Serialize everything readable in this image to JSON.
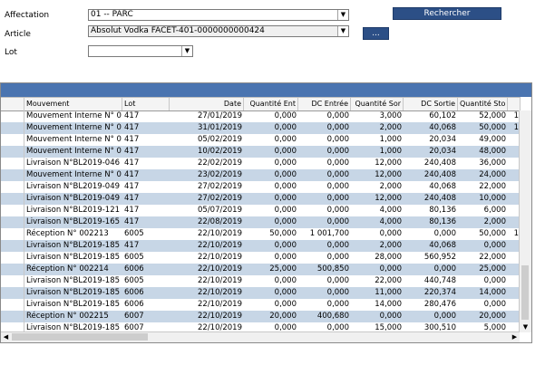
{
  "filters": {
    "affectation_label": "Affectation",
    "affectation_value": "01 -- PARC",
    "article_label": "Article",
    "article_value": "Absolut Vodka FACET-401-0000000000424",
    "lot_label": "Lot",
    "lot_value": ""
  },
  "buttons": {
    "search_label": "Rechercher",
    "browse_label": "..."
  },
  "table": {
    "columns": [
      "Mouvement",
      "Lot",
      "Date",
      "Quantité Ent",
      "DC Entrée",
      "Quantité Sor",
      "DC Sortie",
      "Quantité Sto"
    ],
    "rows": [
      {
        "mouvement": "Mouvement Interne N° 0",
        "lot": "417",
        "date": "27/01/2019",
        "qte_ent": "0,000",
        "dc_ent": "0,000",
        "qte_sor": "3,000",
        "dc_sor": "60,102",
        "qte_sto": "52,000",
        "extra": "1"
      },
      {
        "mouvement": "Mouvement Interne N° 0",
        "lot": "417",
        "date": "31/01/2019",
        "qte_ent": "0,000",
        "dc_ent": "0,000",
        "qte_sor": "2,000",
        "dc_sor": "40,068",
        "qte_sto": "50,000",
        "extra": "1"
      },
      {
        "mouvement": "Mouvement Interne N° 0",
        "lot": "417",
        "date": "05/02/2019",
        "qte_ent": "0,000",
        "dc_ent": "0,000",
        "qte_sor": "1,000",
        "dc_sor": "20,034",
        "qte_sto": "49,000",
        "extra": ""
      },
      {
        "mouvement": "Mouvement Interne N° 0",
        "lot": "417",
        "date": "10/02/2019",
        "qte_ent": "0,000",
        "dc_ent": "0,000",
        "qte_sor": "1,000",
        "dc_sor": "20,034",
        "qte_sto": "48,000",
        "extra": ""
      },
      {
        "mouvement": "Livraison N°BL2019-046",
        "lot": "417",
        "date": "22/02/2019",
        "qte_ent": "0,000",
        "dc_ent": "0,000",
        "qte_sor": "12,000",
        "dc_sor": "240,408",
        "qte_sto": "36,000",
        "extra": ""
      },
      {
        "mouvement": "Mouvement Interne N° 0",
        "lot": "417",
        "date": "23/02/2019",
        "qte_ent": "0,000",
        "dc_ent": "0,000",
        "qte_sor": "12,000",
        "dc_sor": "240,408",
        "qte_sto": "24,000",
        "extra": ""
      },
      {
        "mouvement": "Livraison N°BL2019-049",
        "lot": "417",
        "date": "27/02/2019",
        "qte_ent": "0,000",
        "dc_ent": "0,000",
        "qte_sor": "2,000",
        "dc_sor": "40,068",
        "qte_sto": "22,000",
        "extra": ""
      },
      {
        "mouvement": "Livraison N°BL2019-049",
        "lot": "417",
        "date": "27/02/2019",
        "qte_ent": "0,000",
        "dc_ent": "0,000",
        "qte_sor": "12,000",
        "dc_sor": "240,408",
        "qte_sto": "10,000",
        "extra": ""
      },
      {
        "mouvement": "Livraison N°BL2019-121",
        "lot": "417",
        "date": "05/07/2019",
        "qte_ent": "0,000",
        "dc_ent": "0,000",
        "qte_sor": "4,000",
        "dc_sor": "80,136",
        "qte_sto": "6,000",
        "extra": ""
      },
      {
        "mouvement": "Livraison N°BL2019-165",
        "lot": "417",
        "date": "22/08/2019",
        "qte_ent": "0,000",
        "dc_ent": "0,000",
        "qte_sor": "4,000",
        "dc_sor": "80,136",
        "qte_sto": "2,000",
        "extra": ""
      },
      {
        "mouvement": "Réception N° 002213",
        "lot": "6005",
        "date": "22/10/2019",
        "qte_ent": "50,000",
        "dc_ent": "1 001,700",
        "qte_sor": "0,000",
        "dc_sor": "0,000",
        "qte_sto": "50,000",
        "extra": "1"
      },
      {
        "mouvement": "Livraison N°BL2019-185",
        "lot": "417",
        "date": "22/10/2019",
        "qte_ent": "0,000",
        "dc_ent": "0,000",
        "qte_sor": "2,000",
        "dc_sor": "40,068",
        "qte_sto": "0,000",
        "extra": ""
      },
      {
        "mouvement": "Livraison N°BL2019-185",
        "lot": "6005",
        "date": "22/10/2019",
        "qte_ent": "0,000",
        "dc_ent": "0,000",
        "qte_sor": "28,000",
        "dc_sor": "560,952",
        "qte_sto": "22,000",
        "extra": ""
      },
      {
        "mouvement": "Réception N° 002214",
        "lot": "6006",
        "date": "22/10/2019",
        "qte_ent": "25,000",
        "dc_ent": "500,850",
        "qte_sor": "0,000",
        "dc_sor": "0,000",
        "qte_sto": "25,000",
        "extra": ""
      },
      {
        "mouvement": "Livraison N°BL2019-185",
        "lot": "6005",
        "date": "22/10/2019",
        "qte_ent": "0,000",
        "dc_ent": "0,000",
        "qte_sor": "22,000",
        "dc_sor": "440,748",
        "qte_sto": "0,000",
        "extra": ""
      },
      {
        "mouvement": "Livraison N°BL2019-185",
        "lot": "6006",
        "date": "22/10/2019",
        "qte_ent": "0,000",
        "dc_ent": "0,000",
        "qte_sor": "11,000",
        "dc_sor": "220,374",
        "qte_sto": "14,000",
        "extra": ""
      },
      {
        "mouvement": "Livraison N°BL2019-185",
        "lot": "6006",
        "date": "22/10/2019",
        "qte_ent": "0,000",
        "dc_ent": "0,000",
        "qte_sor": "14,000",
        "dc_sor": "280,476",
        "qte_sto": "0,000",
        "extra": ""
      },
      {
        "mouvement": "Réception N° 002215",
        "lot": "6007",
        "date": "22/10/2019",
        "qte_ent": "20,000",
        "dc_ent": "400,680",
        "qte_sor": "0,000",
        "dc_sor": "0,000",
        "qte_sto": "20,000",
        "extra": ""
      },
      {
        "mouvement": "Livraison N°BL2019-185",
        "lot": "6007",
        "date": "22/10/2019",
        "qte_ent": "0,000",
        "dc_ent": "0,000",
        "qte_sor": "15,000",
        "dc_sor": "300,510",
        "qte_sto": "5,000",
        "extra": ""
      }
    ]
  },
  "icons": {
    "dropdown": "chevron-down-icon",
    "scroll_left": "arrow-left-icon",
    "scroll_right": "arrow-right-icon",
    "scroll_down": "arrow-down-icon"
  },
  "colors": {
    "button_bg": "#2c4f86",
    "band_bg": "#4a74b0",
    "alt_row_bg": "#c7d6e6"
  }
}
